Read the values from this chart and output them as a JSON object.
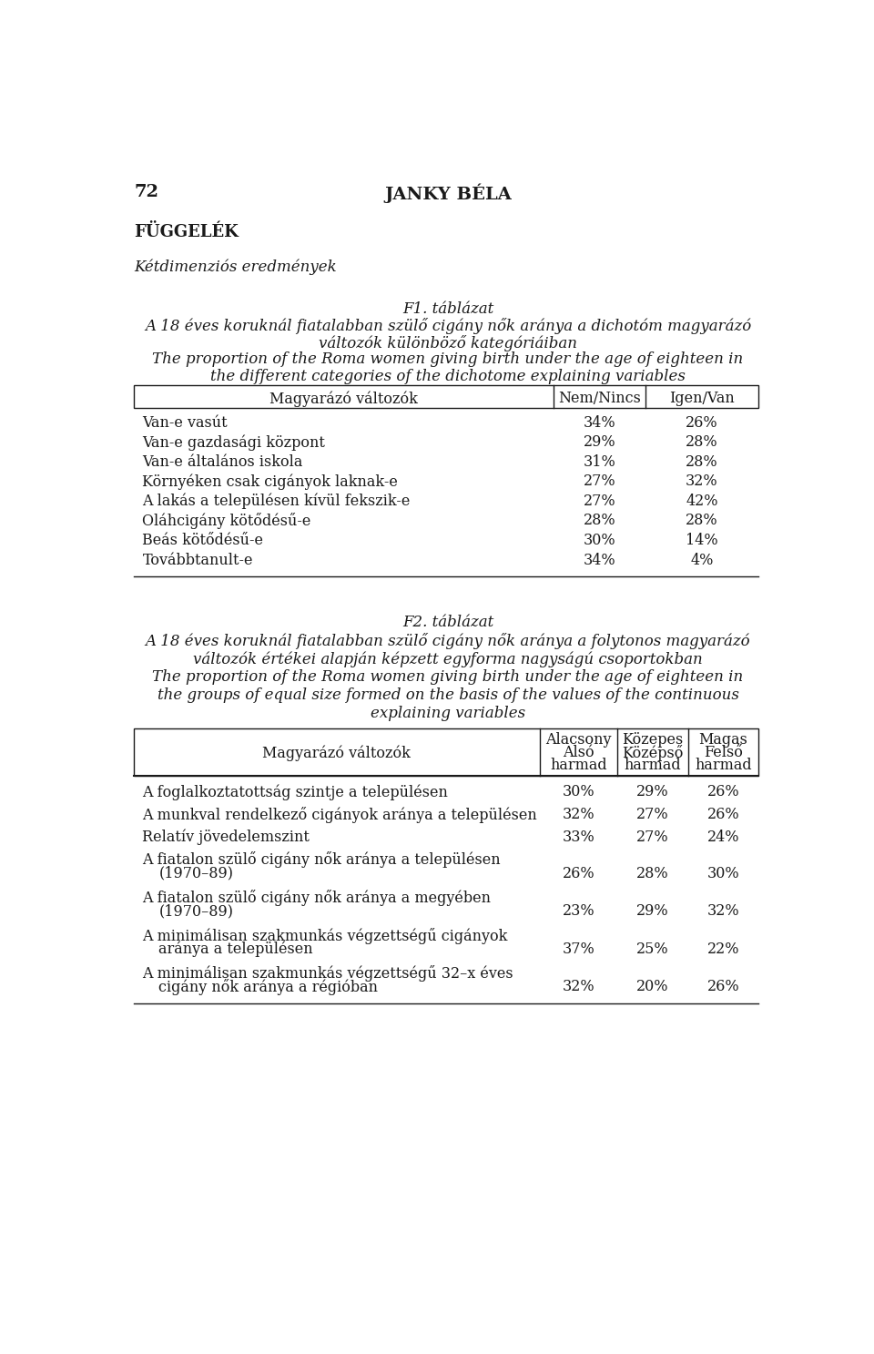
{
  "page_num": "72",
  "header": "JANKY BÉLA",
  "section": "FÜGGELÉK",
  "subtitle": "Kétdimenziós eredmények",
  "table1_title_hu_1": "F1. táblázat",
  "table1_title_hu_2": "A 18 éves koruknál fiatalabban szülő cigány nők aránya a dichotóm magyarázó",
  "table1_title_hu_3": "változók különböző kategóriáiban",
  "table1_title_en_1": "The proportion of the Roma women giving birth under the age of eighteen in",
  "table1_title_en_2": "the different categories of the dichotome explaining variables",
  "table1_col1": "Magyarázó változók",
  "table1_col2": "Nem/Nincs",
  "table1_col3": "Igen/Van",
  "table1_rows": [
    [
      "Van-e vasút",
      "34%",
      "26%"
    ],
    [
      "Van-e gazdasági központ",
      "29%",
      "28%"
    ],
    [
      "Van-e általános iskola",
      "31%",
      "28%"
    ],
    [
      "Környéken csak cigányok laknak-e",
      "27%",
      "32%"
    ],
    [
      "A lakás a településen kívül fekszik-e",
      "27%",
      "42%"
    ],
    [
      "Oláhcigány kötődésű-e",
      "28%",
      "28%"
    ],
    [
      "Beás kötődésű-e",
      "30%",
      "14%"
    ],
    [
      "Továbbtanult-e",
      "34%",
      "4%"
    ]
  ],
  "table2_title_hu_1": "F2. táblázat",
  "table2_title_hu_2": "A 18 éves koruknál fiatalabban szülő cigány nők aránya a folytonos magyarázó",
  "table2_title_hu_3": "változók értékei alapján képzett egyforma nagyságú csoportokban",
  "table2_title_en_1": "The proportion of the Roma women giving birth under the age of eighteen in",
  "table2_title_en_2": "the groups of equal size formed on the basis of the values of the continuous",
  "table2_title_en_3": "explaining variables",
  "table2_col1": "Magyarázó változók",
  "table2_col2_line1": "Alacsony",
  "table2_col2_line2": "Alsó",
  "table2_col2_line3": "harmad",
  "table2_col3_line1": "Közepes",
  "table2_col3_line2": "Középső",
  "table2_col3_line3": "harmad",
  "table2_col4_line1": "Magas",
  "table2_col4_line2": "Felső",
  "table2_col4_line3": "harmad",
  "table2_rows_display": [
    [
      [
        "A foglalkoztatottság szintje a településen"
      ],
      "30%",
      "29%",
      "26%"
    ],
    [
      [
        "A munkval rendelkező cigányok aránya a településen"
      ],
      "32%",
      "27%",
      "26%"
    ],
    [
      [
        "Relatív jövedelemszint"
      ],
      "33%",
      "27%",
      "24%"
    ],
    [
      [
        "A fiatalon szülő cigány nők aránya a településen",
        "(1970–89)"
      ],
      "26%",
      "28%",
      "30%"
    ],
    [
      [
        "A fiatalon szülő cigány nők aránya a megyében",
        "(1970–89)"
      ],
      "23%",
      "29%",
      "32%"
    ],
    [
      [
        "A minimálisan szakmunkás végzettségű cigányok",
        "aránya a településen"
      ],
      "37%",
      "25%",
      "22%"
    ],
    [
      [
        "A minimálisan szakmunkás végzettségű 32–x éves",
        "cigány nők aránya a régióban"
      ],
      "32%",
      "20%",
      "26%"
    ]
  ],
  "bg_color": "#ffffff",
  "text_color": "#1a1a1a"
}
